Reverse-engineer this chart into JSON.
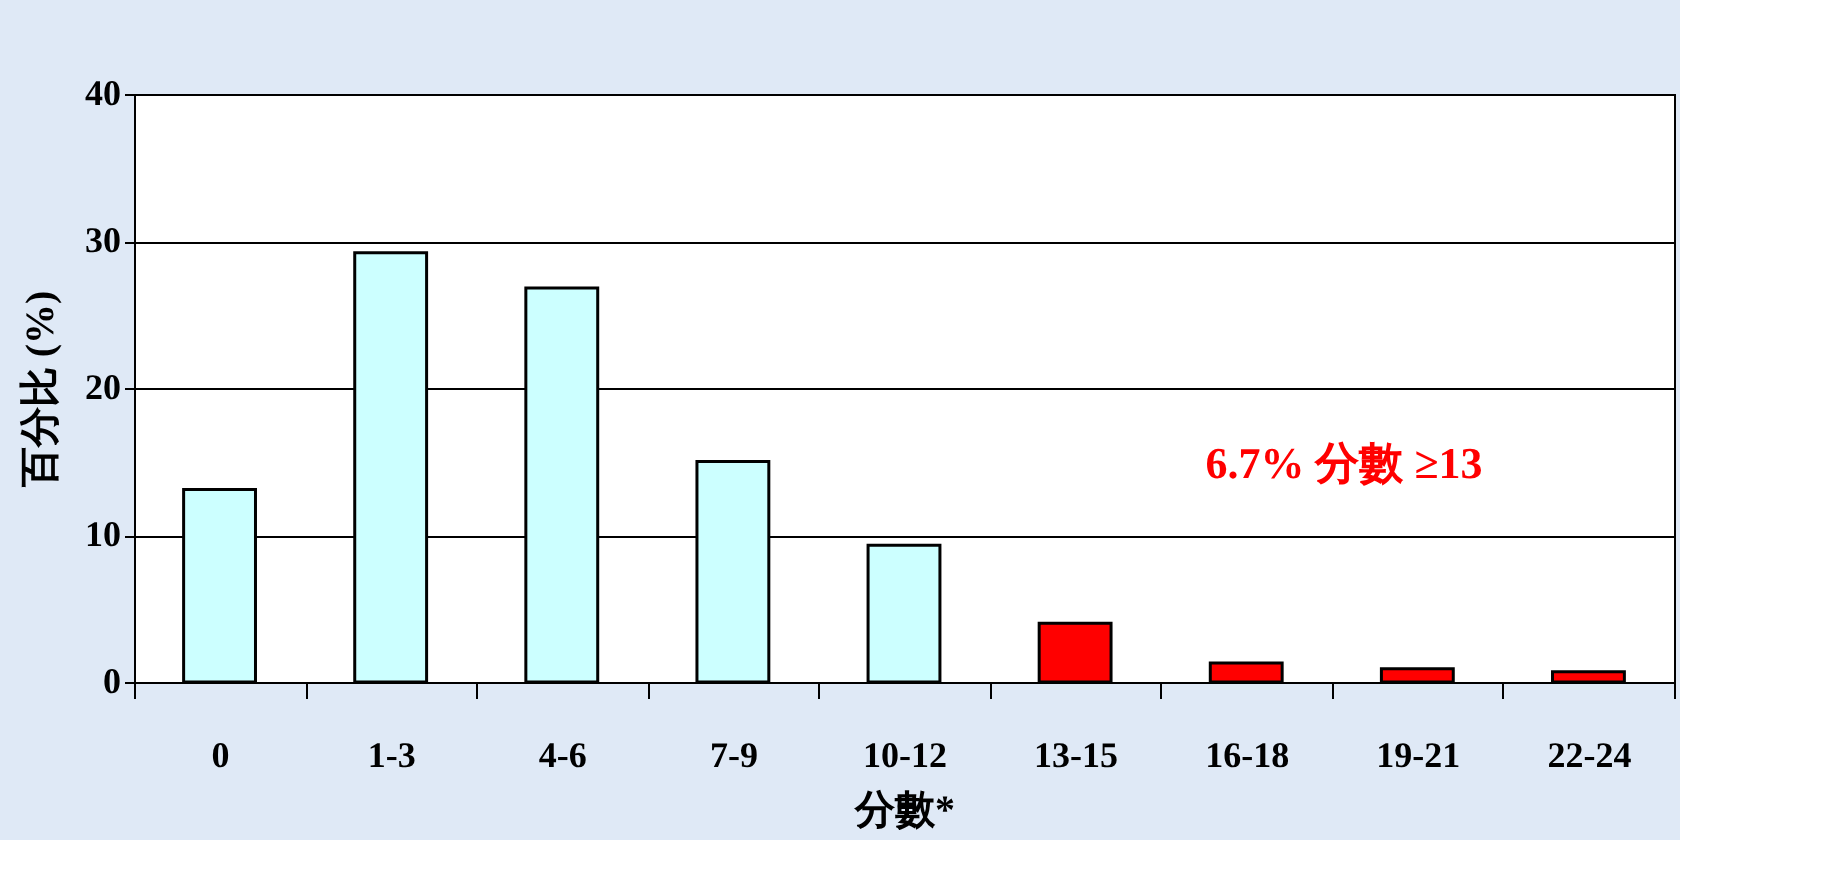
{
  "chart_data": {
    "type": "bar",
    "xlabel": "分數*",
    "ylabel": "百分比 (%)",
    "categories": [
      "0",
      "1-3",
      "4-6",
      "7-9",
      "10-12",
      "13-15",
      "16-18",
      "19-21",
      "22-24"
    ],
    "values": [
      13.1,
      29.2,
      26.8,
      15.0,
      9.3,
      4.0,
      1.3,
      0.9,
      0.7
    ],
    "colors": [
      "#ccffff",
      "#ccffff",
      "#ccffff",
      "#ccffff",
      "#ccffff",
      "#ff0000",
      "#ff0000",
      "#ff0000",
      "#ff0000"
    ],
    "ylim": [
      0,
      40
    ],
    "yticks": [
      0,
      10,
      20,
      30,
      40
    ],
    "grid": "y",
    "annotations": [
      "6.7% 分數 ≥13"
    ]
  }
}
